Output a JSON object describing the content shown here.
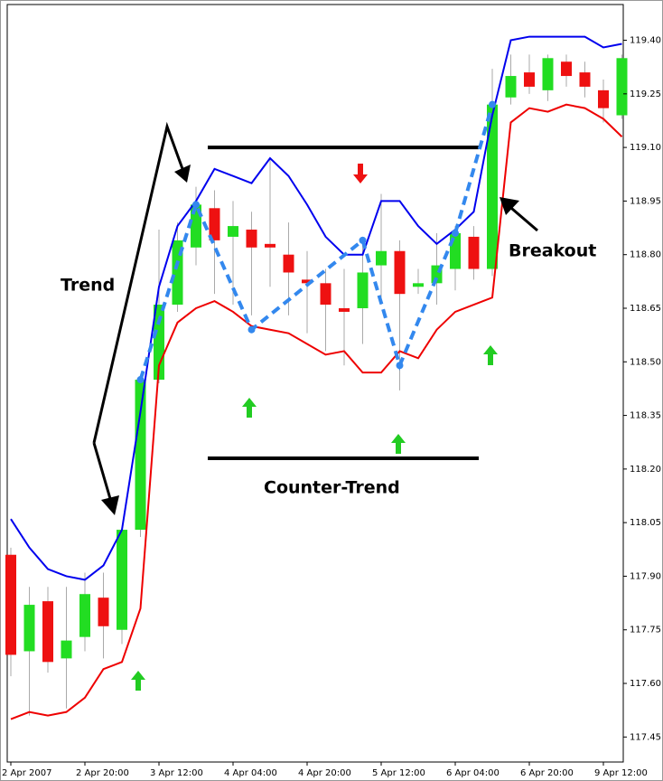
{
  "chart_data": {
    "type": "candlestick",
    "categories": [
      "2 Apr 2007",
      null,
      null,
      null,
      "2 Apr 20:00",
      null,
      null,
      null,
      "3 Apr 12:00",
      null,
      null,
      null,
      "4 Apr 04:00",
      null,
      null,
      null,
      "4 Apr 20:00",
      null,
      null,
      null,
      "5 Apr 12:00",
      null,
      null,
      null,
      "6 Apr 04:00",
      null,
      null,
      null,
      "6 Apr 20:00",
      null,
      null,
      null,
      "9 Apr 12:00",
      null
    ],
    "open": [
      117.96,
      117.69,
      117.83,
      117.67,
      117.73,
      117.84,
      117.75,
      118.03,
      118.45,
      118.66,
      118.82,
      118.93,
      118.85,
      118.87,
      118.83,
      118.8,
      118.73,
      118.72,
      118.65,
      118.65,
      118.77,
      118.81,
      118.71,
      118.72,
      118.76,
      118.85,
      118.76,
      119.24,
      119.31,
      119.26,
      119.34,
      119.31,
      119.26,
      119.19
    ],
    "high": [
      117.98,
      117.87,
      117.87,
      117.87,
      117.91,
      117.91,
      118.03,
      118.46,
      118.87,
      118.89,
      118.99,
      118.98,
      118.95,
      118.92,
      119.07,
      118.89,
      118.81,
      118.76,
      118.76,
      118.85,
      118.97,
      118.84,
      118.76,
      118.86,
      118.88,
      118.88,
      119.32,
      119.36,
      119.36,
      119.36,
      119.36,
      119.34,
      119.29,
      119.36
    ],
    "low": [
      117.62,
      117.51,
      117.63,
      117.53,
      117.69,
      117.67,
      117.71,
      118.01,
      118.44,
      118.64,
      118.77,
      118.69,
      118.66,
      118.63,
      118.71,
      118.63,
      118.58,
      118.53,
      118.49,
      118.55,
      118.66,
      118.42,
      118.69,
      118.66,
      118.7,
      118.73,
      118.74,
      119.22,
      119.25,
      119.23,
      119.27,
      119.24,
      119.17,
      119.18
    ],
    "close": [
      117.68,
      117.82,
      117.66,
      117.72,
      117.85,
      117.76,
      118.03,
      118.45,
      118.66,
      118.84,
      118.94,
      118.84,
      118.88,
      118.82,
      118.82,
      118.75,
      118.72,
      118.66,
      118.64,
      118.75,
      118.81,
      118.69,
      118.72,
      118.77,
      118.86,
      118.76,
      119.22,
      119.3,
      119.27,
      119.35,
      119.3,
      119.27,
      119.21,
      119.35
    ],
    "up_color": "#22dd22",
    "down_color": "#ee1111",
    "bands": [
      {
        "color": "#0000ee",
        "values": [
          118.06,
          117.98,
          117.92,
          117.9,
          117.89,
          117.93,
          118.03,
          118.36,
          118.71,
          118.88,
          118.95,
          119.04,
          119.02,
          119.0,
          119.07,
          119.02,
          118.94,
          118.85,
          118.8,
          118.8,
          118.95,
          118.95,
          118.88,
          118.83,
          118.87,
          118.92,
          119.19,
          119.4,
          119.41,
          119.41,
          119.41,
          119.41,
          119.38,
          119.39
        ]
      },
      {
        "color": "#ee0000",
        "values": [
          117.5,
          117.52,
          117.51,
          117.52,
          117.56,
          117.64,
          117.66,
          117.81,
          118.49,
          118.61,
          118.65,
          118.67,
          118.64,
          118.6,
          118.59,
          118.58,
          118.55,
          118.52,
          118.53,
          118.47,
          118.47,
          118.53,
          118.51,
          118.59,
          118.64,
          118.66,
          118.68,
          119.17,
          119.21,
          119.2,
          119.22,
          119.21,
          119.18,
          119.13
        ]
      }
    ],
    "zigzag": {
      "color": "#3388ee",
      "index": [
        7,
        10,
        13,
        19,
        21,
        24,
        26
      ],
      "values": [
        118.45,
        118.94,
        118.59,
        118.84,
        118.49,
        118.86,
        119.22
      ]
    },
    "levels": [
      119.1,
      118.23
    ],
    "ylim": [
      117.38,
      119.5
    ],
    "yticks": [
      {
        "value": 119.4,
        "label": "119.40"
      },
      119.25,
      {
        "value": 119.1,
        "label": "119.10"
      },
      118.95,
      {
        "value": 118.8,
        "label": "118.80"
      },
      118.65,
      {
        "value": 118.5,
        "label": "118.50"
      },
      118.35,
      {
        "value": 118.2,
        "label": "118.20"
      },
      118.05,
      {
        "value": 117.9,
        "label": "117.90"
      },
      117.75,
      {
        "value": 117.6,
        "label": "117.60"
      },
      117.45
    ],
    "annotations": [
      "Trend",
      "Counter-Trend",
      "Breakout"
    ]
  }
}
